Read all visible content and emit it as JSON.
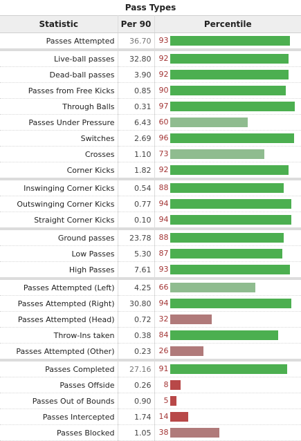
{
  "caption": "Pass Types",
  "headers": {
    "statistic": "Statistic",
    "per90": "Per 90",
    "percentile": "Percentile"
  },
  "colors": {
    "high": "#4caf50",
    "mid": "#8fbc8f",
    "low": "#b07a7a",
    "verylow": "#b84848"
  },
  "rows": [
    {
      "stat": "Passes Attempted",
      "per90": "36.70",
      "pct": 93,
      "sep": false,
      "muted": true
    },
    {
      "stat": "Live-ball passes",
      "per90": "32.80",
      "pct": 92,
      "sep": true
    },
    {
      "stat": "Dead-ball passes",
      "per90": "3.90",
      "pct": 92
    },
    {
      "stat": "Passes from Free Kicks",
      "per90": "0.85",
      "pct": 90
    },
    {
      "stat": "Through Balls",
      "per90": "0.31",
      "pct": 97
    },
    {
      "stat": "Passes Under Pressure",
      "per90": "6.43",
      "pct": 60
    },
    {
      "stat": "Switches",
      "per90": "2.69",
      "pct": 96
    },
    {
      "stat": "Crosses",
      "per90": "1.10",
      "pct": 73
    },
    {
      "stat": "Corner Kicks",
      "per90": "1.82",
      "pct": 92
    },
    {
      "stat": "Inswinging Corner Kicks",
      "per90": "0.54",
      "pct": 88,
      "sep": true
    },
    {
      "stat": "Outswinging Corner Kicks",
      "per90": "0.77",
      "pct": 94
    },
    {
      "stat": "Straight Corner Kicks",
      "per90": "0.10",
      "pct": 94
    },
    {
      "stat": "Ground passes",
      "per90": "23.78",
      "pct": 88,
      "sep": true
    },
    {
      "stat": "Low Passes",
      "per90": "5.30",
      "pct": 87
    },
    {
      "stat": "High Passes",
      "per90": "7.61",
      "pct": 93
    },
    {
      "stat": "Passes Attempted (Left)",
      "per90": "4.25",
      "pct": 66,
      "sep": true
    },
    {
      "stat": "Passes Attempted (Right)",
      "per90": "30.80",
      "pct": 94
    },
    {
      "stat": "Passes Attempted (Head)",
      "per90": "0.72",
      "pct": 32
    },
    {
      "stat": "Throw-Ins taken",
      "per90": "0.38",
      "pct": 84
    },
    {
      "stat": "Passes Attempted (Other)",
      "per90": "0.23",
      "pct": 26
    },
    {
      "stat": "Passes Completed",
      "per90": "27.16",
      "pct": 91,
      "sep": true,
      "muted": true
    },
    {
      "stat": "Passes Offside",
      "per90": "0.26",
      "pct": 8
    },
    {
      "stat": "Passes Out of Bounds",
      "per90": "0.90",
      "pct": 5
    },
    {
      "stat": "Passes Intercepted",
      "per90": "1.74",
      "pct": 14
    },
    {
      "stat": "Passes Blocked",
      "per90": "1.05",
      "pct": 38
    }
  ]
}
